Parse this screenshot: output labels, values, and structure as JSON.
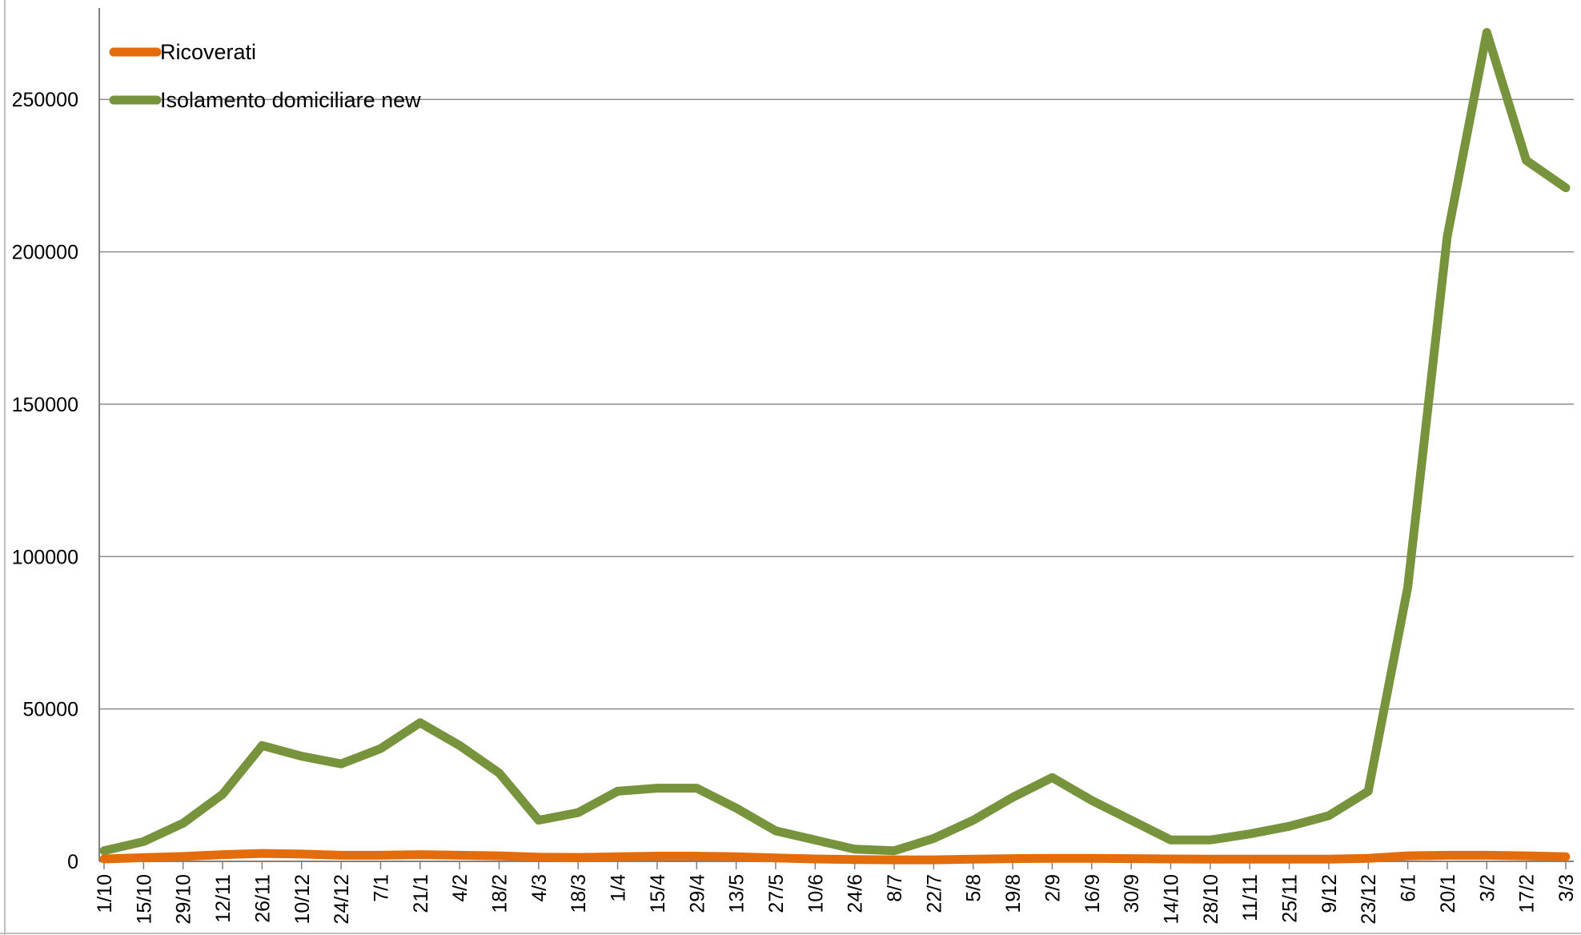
{
  "chart_data": {
    "type": "line",
    "x": [
      "1/10",
      "15/10",
      "29/10",
      "12/11",
      "26/11",
      "10/12",
      "24/12",
      "7/1",
      "21/1",
      "4/2",
      "18/2",
      "4/3",
      "18/3",
      "1/4",
      "15/4",
      "29/4",
      "13/5",
      "27/5",
      "10/6",
      "24/6",
      "8/7",
      "22/7",
      "5/8",
      "19/8",
      "2/9",
      "16/9",
      "30/9",
      "14/10",
      "28/10",
      "11/11",
      "25/11",
      "9/12",
      "23/12",
      "6/1",
      "20/1",
      "3/2",
      "17/2",
      "3/3"
    ],
    "ylim": [
      0,
      280000
    ],
    "yticks": [
      "0",
      "50000",
      "100000",
      "150000",
      "200000",
      "250000"
    ],
    "grid": true,
    "legend": "top-left",
    "series": [
      {
        "name": "Ricoverati",
        "color": "#E46C0A",
        "values": [
          800,
          1200,
          1600,
          2200,
          2600,
          2400,
          2000,
          2000,
          2200,
          2000,
          1800,
          1400,
          1300,
          1500,
          1700,
          1700,
          1500,
          1100,
          800,
          600,
          500,
          500,
          700,
          900,
          1000,
          1000,
          900,
          800,
          700,
          700,
          700,
          700,
          1000,
          1800,
          2000,
          2000,
          1800,
          1500
        ]
      },
      {
        "name": "Isolamento domiciliare new",
        "color": "#77933C",
        "values": [
          3500,
          6500,
          12500,
          22000,
          38000,
          34500,
          32000,
          37000,
          45500,
          38000,
          29000,
          13500,
          16000,
          23000,
          24000,
          24000,
          17500,
          10000,
          7000,
          4000,
          3500,
          7500,
          13500,
          21000,
          27500,
          20000,
          13500,
          7000,
          7000,
          9000,
          11500,
          15000,
          23000,
          90000,
          205000,
          272000,
          230000,
          221000
        ]
      }
    ]
  }
}
